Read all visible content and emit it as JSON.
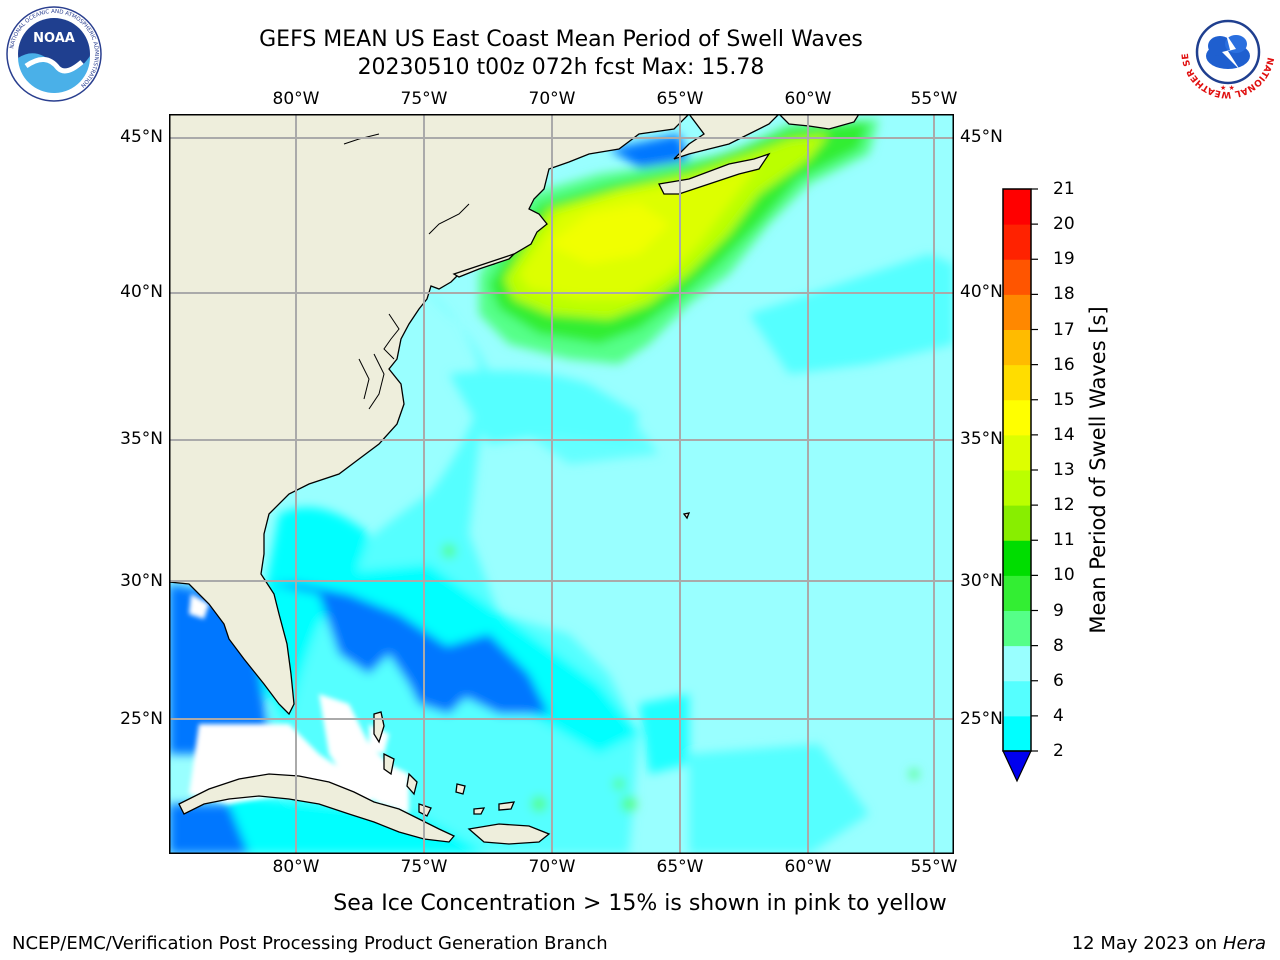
{
  "header": {
    "title_line1": "GEFS MEAN US East Coast Mean Period of Swell Waves",
    "title_line2": "20230510 t00z 072h fcst   Max: 15.78"
  },
  "logos": {
    "left": "noaa-logo",
    "right": "national-weather-service-logo",
    "noaa_text": "NOAA",
    "noaa_ring": "NATIONAL OCEANIC AND ATMOSPHERIC ADMINISTRATION",
    "noaa_ring_bottom": "U.S. DEPARTMENT OF COMMERCE",
    "nws_ring": "NATIONAL WEATHER SERVICE"
  },
  "map": {
    "longitude_labels": [
      "80°W",
      "75°W",
      "70°W",
      "65°W",
      "60°W",
      "55°W"
    ],
    "latitude_labels": [
      "45°N",
      "40°N",
      "35°N",
      "30°N",
      "25°N"
    ],
    "extent": {
      "lon_min": -85,
      "lon_max": -54.3,
      "lat_min": 20.0,
      "lat_max": 46.0
    },
    "grid": true,
    "colors": {
      "land": "#eeeedc",
      "ocean_base": "#99ffff",
      "no_data": "#ffffff"
    }
  },
  "colorbar": {
    "title": "Mean Period of Swell Waves [s]",
    "tick_labels": [
      "2",
      "4",
      "6",
      "8",
      "9",
      "10",
      "11",
      "12",
      "13",
      "14",
      "15",
      "16",
      "17",
      "18",
      "19",
      "20",
      "21"
    ],
    "colors": [
      "#0033ff",
      "#0077ff",
      "#00ffff",
      "#55ffff",
      "#99ffff",
      "#55ff88",
      "#33ee33",
      "#00dd00",
      "#88ee00",
      "#bbff00",
      "#ddff00",
      "#ffff00",
      "#ffdd00",
      "#ffbb00",
      "#ff8800",
      "#ff5500",
      "#ff2200",
      "#ff0000"
    ],
    "under_color": "#0000ee",
    "extend": "min"
  },
  "caption": "Sea Ice Concentration > 15% is shown in pink to yellow",
  "footer": {
    "left": "NCEP/EMC/Verification Post Processing Product Generation Branch",
    "right_date": "12 May 2023 on",
    "right_machine": "Hera"
  }
}
